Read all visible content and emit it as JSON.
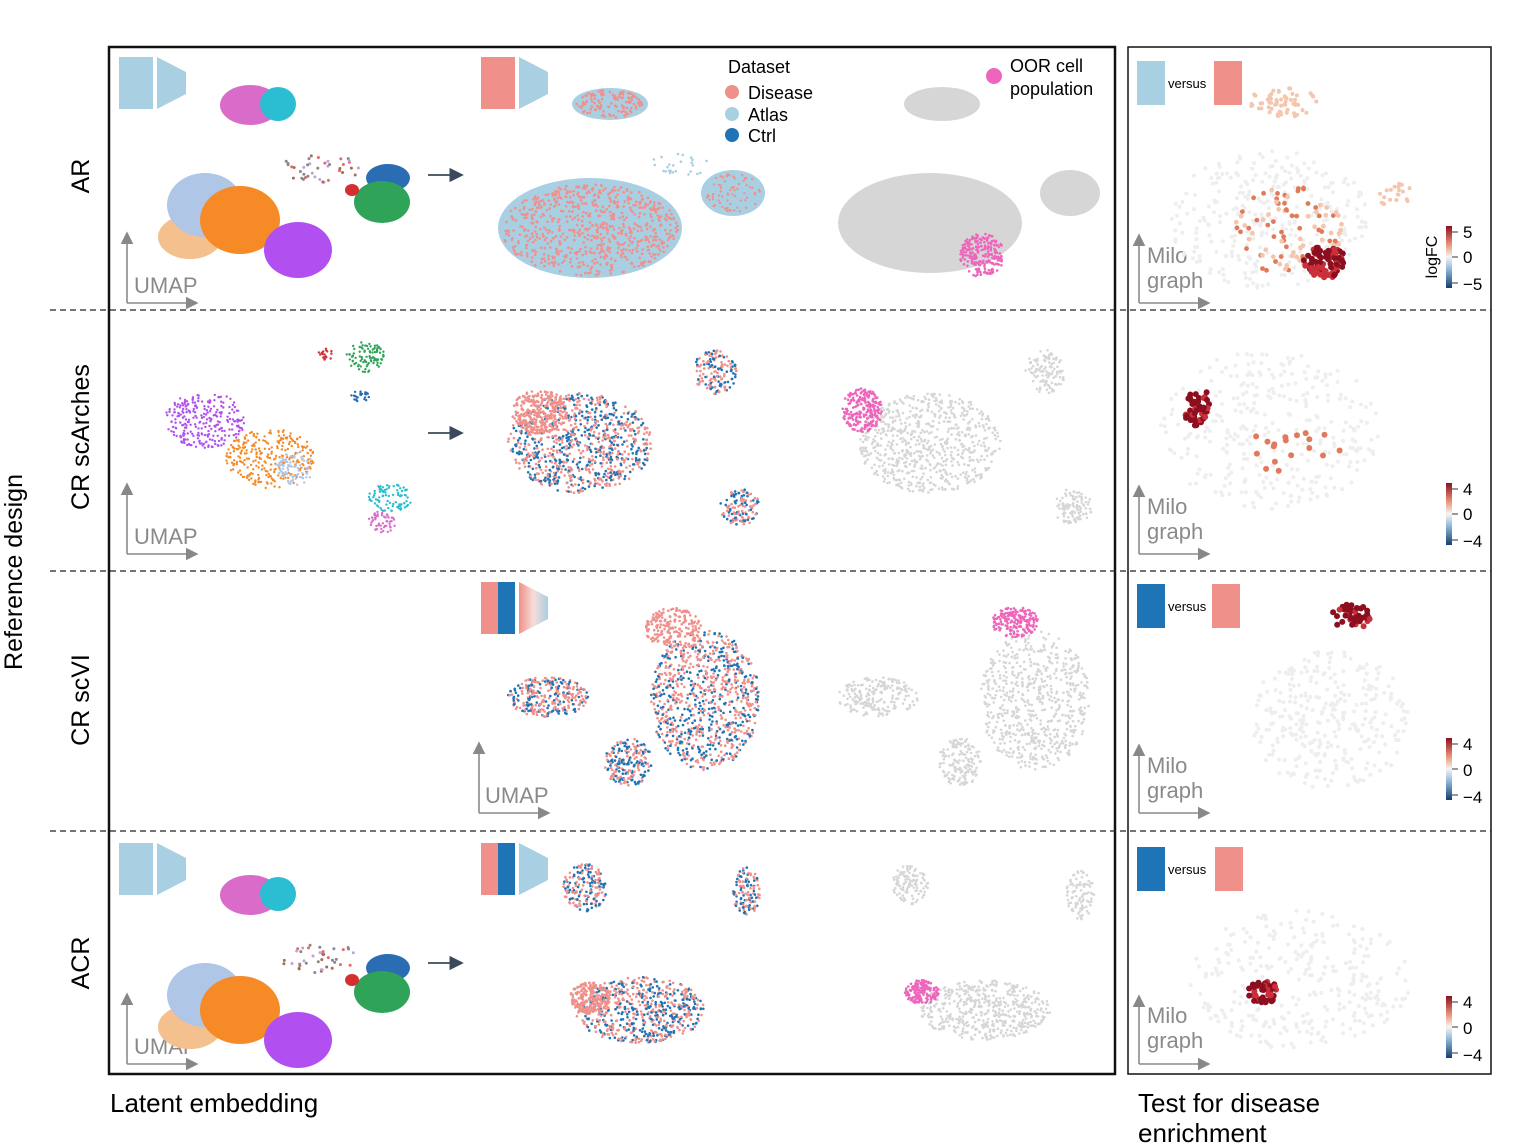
{
  "figure": {
    "y_axis_title": "Reference design",
    "bottom_left_caption": "Latent embedding",
    "bottom_right_caption_line1": "Test for disease",
    "bottom_right_caption_line2": "enrichment"
  },
  "rows": [
    {
      "label": "AR"
    },
    {
      "label": "CR scArches"
    },
    {
      "label": "CR scVI"
    },
    {
      "label": "ACR"
    }
  ],
  "axes": {
    "umap_label": "UMAP",
    "milo_line1": "Milo",
    "milo_line2": "graph"
  },
  "legend": {
    "title": "Dataset",
    "items": [
      {
        "label": "Disease",
        "color": "#f0908b"
      },
      {
        "label": "Atlas",
        "color": "#a9cfe3"
      },
      {
        "label": "Ctrl",
        "color": "#1f74b5"
      }
    ],
    "oor_line1": "OOR cell",
    "oor_line2": "population",
    "oor_color": "#ee66bb"
  },
  "enrichment": {
    "versus_label": "versus",
    "colorbar_title": "logFC",
    "colorbars": [
      {
        "ticks": [
          "5",
          "0",
          "−5"
        ]
      },
      {
        "ticks": [
          "4",
          "0",
          "−4"
        ]
      },
      {
        "ticks": [
          "4",
          "0",
          "−4"
        ]
      },
      {
        "ticks": [
          "4",
          "0",
          "−4"
        ]
      }
    ]
  },
  "colors": {
    "atlas": "#a9cfe3",
    "disease": "#f0908b",
    "ctrl": "#1f74b5",
    "oor": "#ee66bb",
    "grey_cells": "#d6d6d6",
    "enrich_high": "#8b0f1e",
    "enrich_mid": "#e07a5a",
    "enrich_low": "#f4c6ad",
    "neutral": "#eeeeee"
  }
}
